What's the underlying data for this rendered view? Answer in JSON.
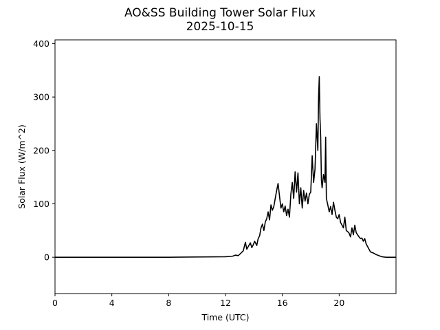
{
  "chart_data": {
    "type": "line",
    "title": "AO&SS Building Tower Solar Flux",
    "subtitle": "2025-10-15",
    "xlabel": "Time (UTC)",
    "ylabel": "Solar Flux (W/m^2)",
    "xlim": [
      0,
      24
    ],
    "ylim": [
      -68,
      407
    ],
    "xticks": [
      0,
      4,
      8,
      12,
      16,
      20
    ],
    "yticks": [
      0,
      100,
      200,
      300,
      400
    ],
    "grid": false,
    "legend": "none",
    "line_color": "#000000",
    "series": [
      {
        "x": [
          0,
          4,
          8,
          12,
          12.5,
          12.7,
          12.9,
          13.1,
          13.25,
          13.4,
          13.5,
          13.6,
          13.75,
          13.85,
          13.95,
          14.05,
          14.2,
          14.3,
          14.4,
          14.5,
          14.6,
          14.7,
          14.8,
          14.9,
          15.0,
          15.1,
          15.2,
          15.3,
          15.4,
          15.5,
          15.6,
          15.7,
          15.8,
          15.9,
          16.0,
          16.1,
          16.2,
          16.3,
          16.4,
          16.5,
          16.6,
          16.7,
          16.8,
          16.9,
          17.0,
          17.1,
          17.2,
          17.3,
          17.4,
          17.5,
          17.6,
          17.7,
          17.8,
          17.9,
          18.0,
          18.1,
          18.2,
          18.3,
          18.4,
          18.5,
          18.55,
          18.6,
          18.65,
          18.7,
          18.75,
          18.8,
          18.9,
          19.0,
          19.05,
          19.1,
          19.2,
          19.3,
          19.4,
          19.5,
          19.6,
          19.7,
          19.8,
          19.9,
          20.0,
          20.1,
          20.2,
          20.3,
          20.4,
          20.5,
          20.6,
          20.7,
          20.8,
          20.9,
          21.0,
          21.1,
          21.2,
          21.3,
          21.4,
          21.5,
          21.6,
          21.7,
          21.8,
          21.9,
          22.0,
          22.2,
          22.4,
          22.6,
          22.8,
          23.0,
          23.3,
          23.6,
          24.0
        ],
        "y": [
          0,
          0,
          0,
          1,
          2,
          4,
          3,
          8,
          12,
          28,
          15,
          20,
          27,
          18,
          23,
          30,
          22,
          35,
          40,
          55,
          62,
          50,
          66,
          72,
          85,
          70,
          98,
          88,
          95,
          110,
          125,
          138,
          115,
          92,
          100,
          85,
          96,
          78,
          90,
          75,
          118,
          140,
          110,
          160,
          122,
          158,
          100,
          130,
          92,
          125,
          105,
          120,
          100,
          118,
          122,
          190,
          140,
          165,
          250,
          200,
          300,
          338,
          260,
          225,
          145,
          130,
          155,
          140,
          225,
          110,
          98,
          85,
          95,
          80,
          103,
          88,
          75,
          72,
          80,
          65,
          60,
          55,
          75,
          50,
          48,
          45,
          38,
          55,
          42,
          60,
          46,
          42,
          38,
          35,
          36,
          30,
          35,
          25,
          20,
          10,
          8,
          5,
          3,
          1,
          0,
          0,
          0
        ]
      }
    ]
  }
}
